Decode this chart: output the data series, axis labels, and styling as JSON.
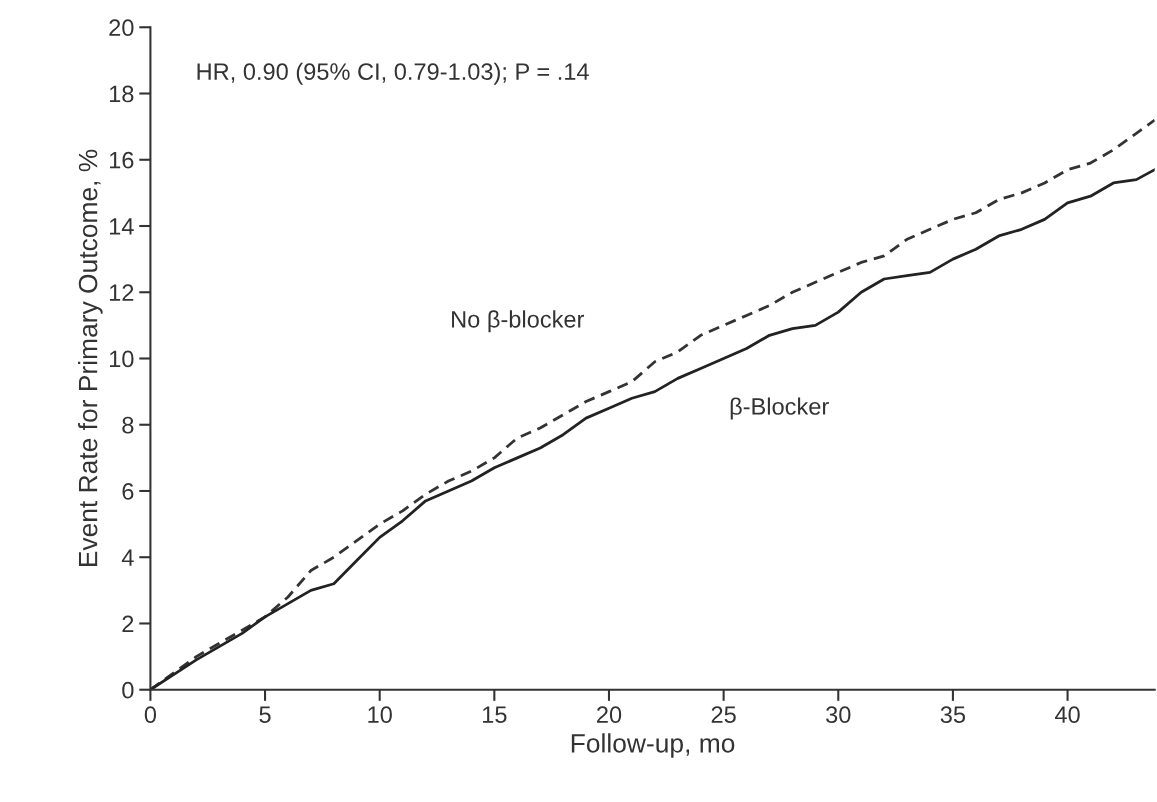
{
  "chart_data": {
    "type": "line",
    "xlabel": "Follow-up, mo",
    "ylabel": "Event Rate for Primary Outcome, %",
    "annotations": [
      "HR, 0.90 (95% CI, 0.79-1.03); P = .14"
    ],
    "x": [
      0,
      2,
      4,
      5,
      6,
      7,
      8,
      9,
      10,
      11,
      12,
      13,
      14,
      15,
      16,
      17,
      18,
      19,
      20,
      21,
      22,
      23,
      24,
      25,
      26,
      27,
      28,
      29,
      30,
      31,
      32,
      33,
      34,
      35,
      36,
      37,
      38,
      39,
      40,
      41,
      42,
      43,
      43.8
    ],
    "series": [
      {
        "name": "No β-blocker",
        "color": "#333333",
        "line_style": "dashed",
        "values": [
          0,
          1.0,
          1.8,
          2.2,
          2.8,
          3.6,
          4.0,
          4.5,
          5.0,
          5.4,
          5.9,
          6.3,
          6.6,
          7.0,
          7.6,
          7.9,
          8.3,
          8.7,
          9.0,
          9.3,
          9.9,
          10.2,
          10.7,
          11.0,
          11.3,
          11.6,
          12.0,
          12.3,
          12.6,
          12.9,
          13.1,
          13.6,
          13.9,
          14.2,
          14.4,
          14.8,
          15.0,
          15.3,
          15.7,
          15.9,
          16.3,
          16.8,
          17.2
        ]
      },
      {
        "name": "β-Blocker",
        "color": "#222222",
        "line_style": "solid",
        "values": [
          0,
          0.9,
          1.7,
          2.2,
          2.6,
          3.0,
          3.2,
          3.9,
          4.6,
          5.1,
          5.7,
          6.0,
          6.3,
          6.7,
          7.0,
          7.3,
          7.7,
          8.2,
          8.5,
          8.8,
          9.0,
          9.4,
          9.7,
          10.0,
          10.3,
          10.7,
          10.9,
          11.0,
          11.4,
          12.0,
          12.4,
          12.5,
          12.6,
          13.0,
          13.3,
          13.7,
          13.9,
          14.2,
          14.7,
          14.9,
          15.3,
          15.4,
          15.7
        ]
      }
    ],
    "xlim": [
      0,
      43.8
    ],
    "xticks": [
      0,
      5,
      10,
      15,
      20,
      25,
      30,
      35,
      40
    ],
    "ylim": [
      0,
      20
    ],
    "yticks": [
      0,
      2,
      4,
      6,
      8,
      10,
      12,
      14,
      16,
      18,
      20
    ],
    "grid": false,
    "legend": false,
    "marker": "none"
  }
}
